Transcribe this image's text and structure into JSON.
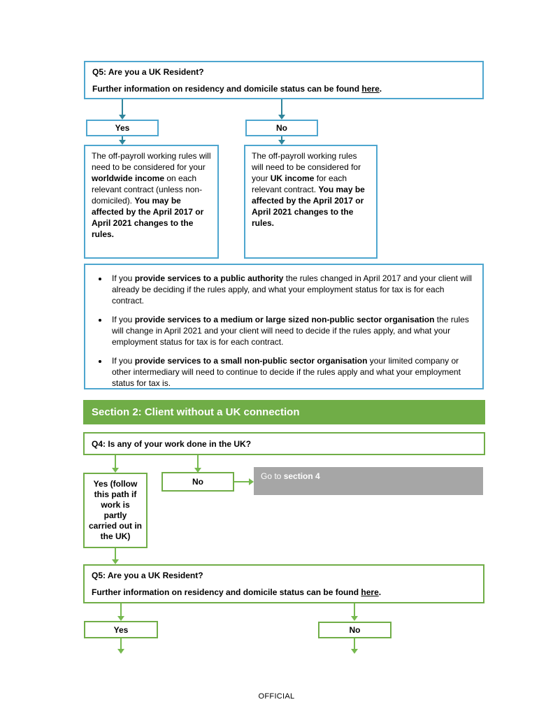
{
  "colors": {
    "blue-border": "#4ea6cf",
    "teal-arrow": "#2f859b",
    "green": "#70ad47",
    "green-arrow": "#76b94f",
    "gray": "#a6a6a6"
  },
  "section1": {
    "q5": {
      "title": "Q5: Are you a UK Resident?",
      "info_pre": "Further information on residency and domicile status can be found ",
      "info_link": "here",
      "info_end": "."
    },
    "yes_label": "Yes",
    "no_label": "No",
    "outcome_yes": {
      "text_1": "The off-payroll working rules will need to be considered for your ",
      "bold_1": "worldwide income",
      "text_2": " on each relevant contract (unless non-domiciled). ",
      "bold_2": "You may be affected by the April 2017 or April 2021 changes to the rules."
    },
    "outcome_no": {
      "text_1": "The off-payroll working rules will need to be considered for your ",
      "bold_1": "UK income",
      "text_2": " for each relevant contract. ",
      "bold_2": "You may be affected by the April 2017 or April 2021 changes to the rules."
    },
    "bullets": [
      {
        "pre": "If you ",
        "bold": "provide services to a public authority",
        "post": " the rules changed in April 2017 and your client will already be deciding if the rules apply, and what your employment status for tax is for each contract."
      },
      {
        "pre": "If you ",
        "bold": "provide services to a medium or large sized non-public sector organisation",
        "post": " the rules will change in April 2021 and your client will need to decide if the rules apply, and what your employment status for tax is for each contract."
      },
      {
        "pre": "If you ",
        "bold": "provide services to a small non-public sector organisation",
        "post": " your limited company or other intermediary will need to continue to decide if the rules apply and what your employment status for tax is."
      }
    ]
  },
  "section2": {
    "header": "Section 2: Client without a UK connection",
    "q4_title": "Q4: Is any of your work done in the UK?",
    "yes_path_label": "Yes (follow this path if work is partly carried out in the UK)",
    "no_label": "No",
    "goto": {
      "pre": "Go to ",
      "bold": "section 4"
    },
    "q5": {
      "title": "Q5: Are you a UK Resident?",
      "info_pre": "Further information on residency and domicile status can be found ",
      "info_link": "here",
      "info_end": "."
    },
    "yes_label": "Yes",
    "no_label_2": "No"
  },
  "footer": {
    "label": "OFFICIAL"
  }
}
